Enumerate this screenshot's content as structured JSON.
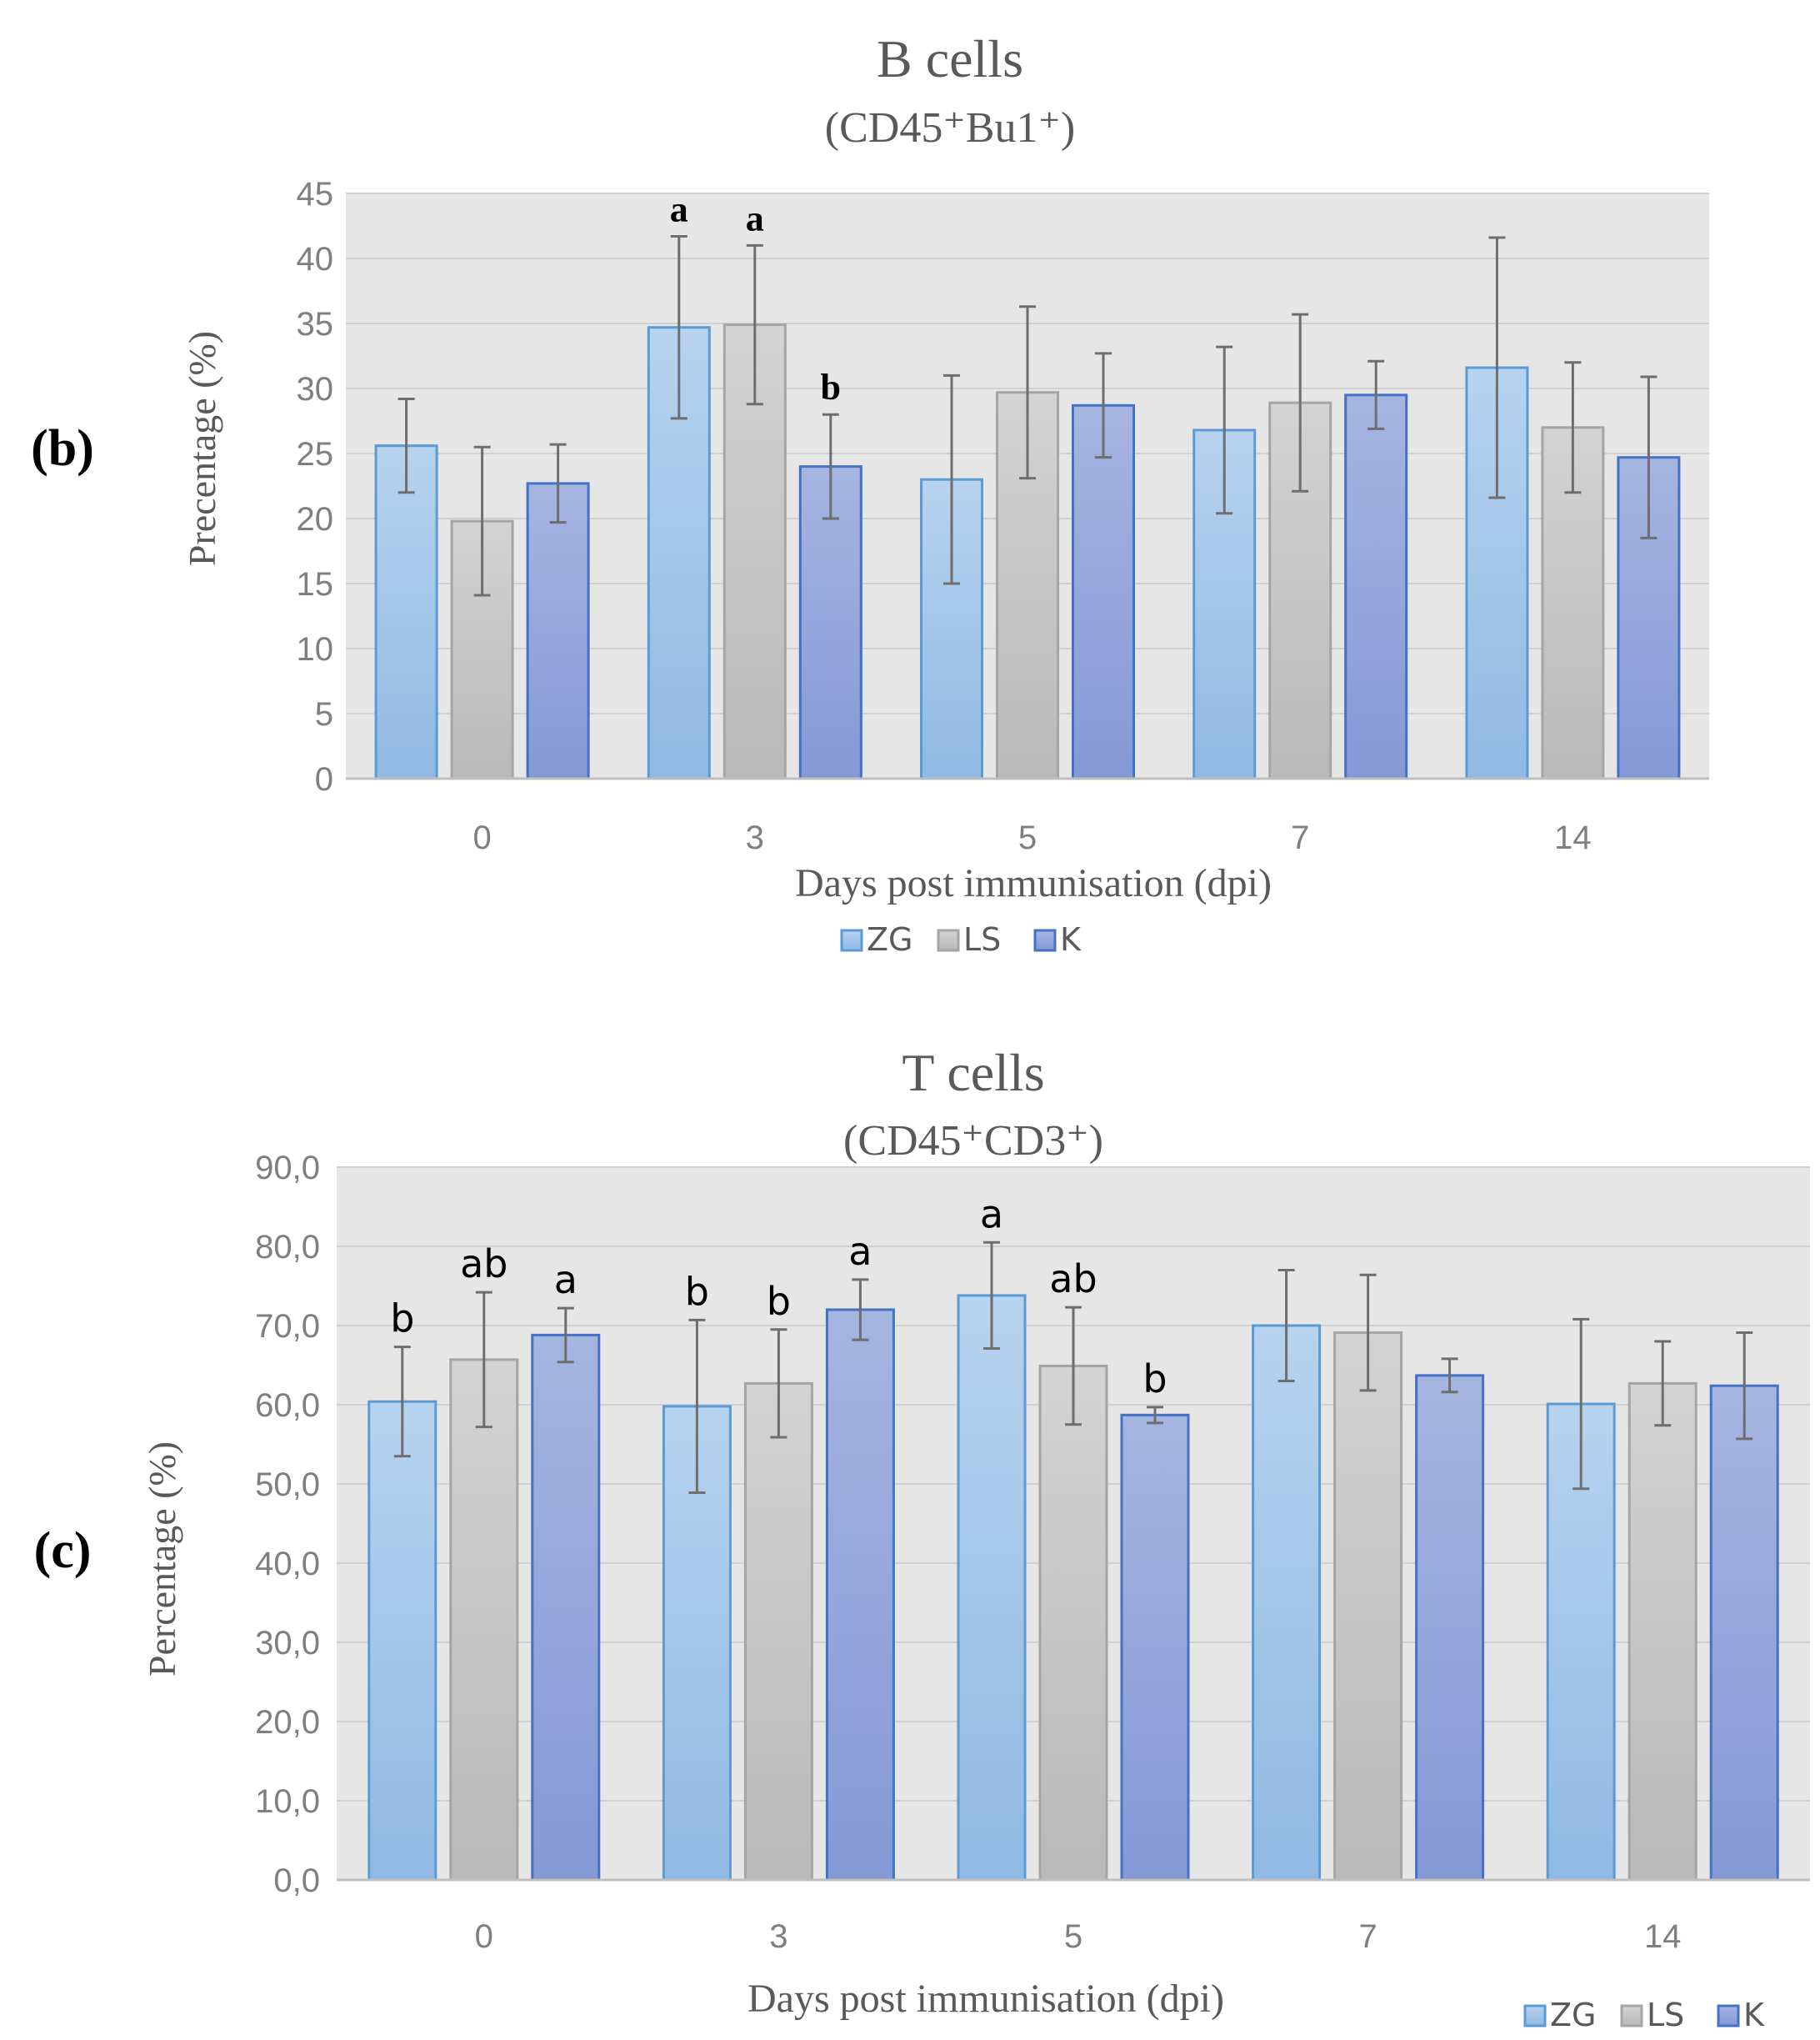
{
  "panels": [
    {
      "panel_label": "(b)",
      "chart_data": {
        "type": "bar",
        "title": "B cells",
        "subtitle": "(CD45⁺Bu1⁺)",
        "xlabel": "Days post immunisation (dpi)",
        "ylabel": "Precentage (%)",
        "ylim": [
          0,
          45
        ],
        "yticks": [
          "0",
          "5",
          "10",
          "15",
          "20",
          "25",
          "30",
          "35",
          "40",
          "45"
        ],
        "grid": true,
        "legend_position": "bottom-center",
        "categories": [
          "0",
          "3",
          "5",
          "7",
          "14"
        ],
        "series": [
          {
            "name": "ZG",
            "color": "#9cc3e6",
            "values": [
              25.6,
              34.7,
              23.0,
              26.8,
              31.6
            ],
            "errors": [
              3.6,
              7.0,
              8.0,
              6.4,
              10.0
            ],
            "labels": [
              "",
              "a",
              "",
              "",
              ""
            ]
          },
          {
            "name": "LS",
            "color": "#c4c4c4",
            "values": [
              19.8,
              34.9,
              29.7,
              28.9,
              27.0
            ],
            "errors": [
              5.7,
              6.1,
              6.6,
              6.8,
              5.0
            ],
            "labels": [
              "",
              "a",
              "",
              "",
              ""
            ]
          },
          {
            "name": "K",
            "color": "#8fa4dc",
            "values": [
              22.7,
              24.0,
              28.7,
              29.5,
              24.7
            ],
            "errors": [
              3.0,
              4.0,
              4.0,
              2.6,
              6.2
            ],
            "labels": [
              "",
              "b",
              "",
              "",
              ""
            ]
          }
        ]
      }
    },
    {
      "panel_label": "(c)",
      "chart_data": {
        "type": "bar",
        "title": "T cells",
        "subtitle": "(CD45⁺CD3⁺)",
        "xlabel": "Days post immunisation (dpi)",
        "ylabel": "Percentage (%)",
        "ylim": [
          0,
          90
        ],
        "yticks": [
          "0,0",
          "10,0",
          "20,0",
          "30,0",
          "40,0",
          "50,0",
          "60,0",
          "70,0",
          "80,0",
          "90,0"
        ],
        "grid": true,
        "legend_position": "bottom-right",
        "categories": [
          "0",
          "3",
          "5",
          "7",
          "14"
        ],
        "series": [
          {
            "name": "ZG",
            "color": "#9cc3e6",
            "values": [
              60.4,
              59.8,
              73.8,
              70.0,
              60.1
            ],
            "errors": [
              6.9,
              10.9,
              6.7,
              7.0,
              10.7
            ],
            "labels": [
              "b",
              "b",
              "a",
              "",
              ""
            ]
          },
          {
            "name": "LS",
            "color": "#c4c4c4",
            "values": [
              65.7,
              62.7,
              64.9,
              69.1,
              62.7
            ],
            "errors": [
              8.5,
              6.8,
              7.4,
              7.3,
              5.3
            ],
            "labels": [
              "ab",
              "b",
              "ab",
              "",
              ""
            ]
          },
          {
            "name": "K",
            "color": "#8fa4dc",
            "values": [
              68.8,
              72.0,
              58.7,
              63.7,
              62.4
            ],
            "errors": [
              3.4,
              3.8,
              1.0,
              2.1,
              6.7
            ],
            "labels": [
              "a",
              "a",
              "b",
              "",
              ""
            ]
          }
        ]
      }
    }
  ]
}
